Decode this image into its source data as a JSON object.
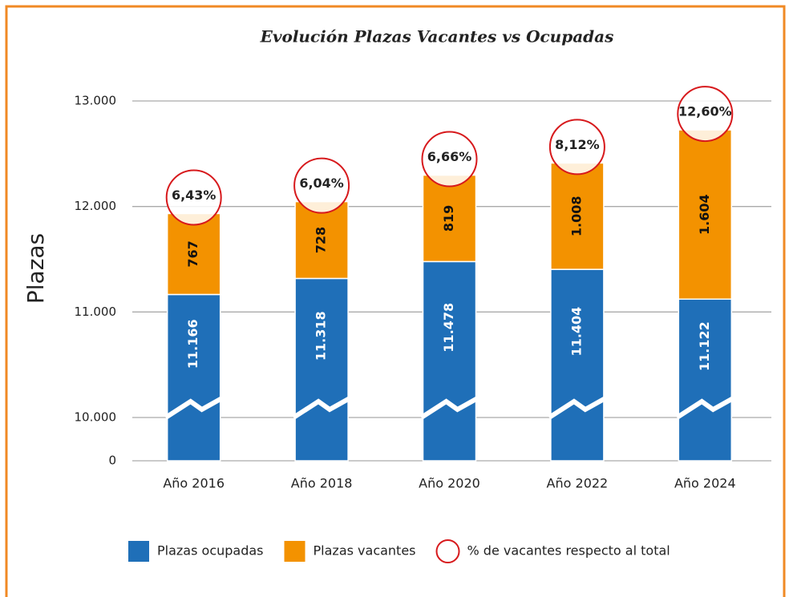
{
  "chart_data": {
    "type": "bar",
    "stacked": true,
    "title": "Evolución Plazas Vacantes vs Ocupadas",
    "y_label": "Plazas",
    "categories": [
      "Año 2016",
      "Año 2018",
      "Año 2020",
      "Año 2022",
      "Año 2024"
    ],
    "series": [
      {
        "name": "Plazas ocupadas",
        "color": "#1f6fb8",
        "values": [
          11166,
          11318,
          11478,
          11404,
          11122
        ],
        "value_labels": [
          "11.166",
          "11.318",
          "11.478",
          "11.404",
          "11.122"
        ]
      },
      {
        "name": "Plazas vacantes",
        "color": "#f39200",
        "values": [
          767,
          728,
          819,
          1008,
          1604
        ],
        "value_labels": [
          "767",
          "728",
          "819",
          "1.008",
          "1.604"
        ]
      }
    ],
    "percentages": {
      "name": "% de vacantes respecto al total",
      "color": "#d7191c",
      "values": [
        6.43,
        6.04,
        6.66,
        8.12,
        12.6
      ],
      "value_labels": [
        "6,43%",
        "6,04%",
        "6,66%",
        "8,12%",
        "12,60%"
      ]
    },
    "ylim": [
      0,
      13000
    ],
    "yticks": [
      0,
      {
        "value": 10000,
        "label": "10.000"
      },
      {
        "value": 11000,
        "label": "11.000"
      },
      {
        "value": 12000,
        "label": "12.000"
      },
      {
        "value": 13000,
        "label": "13.000"
      }
    ],
    "axis_break": true,
    "grid": true
  }
}
